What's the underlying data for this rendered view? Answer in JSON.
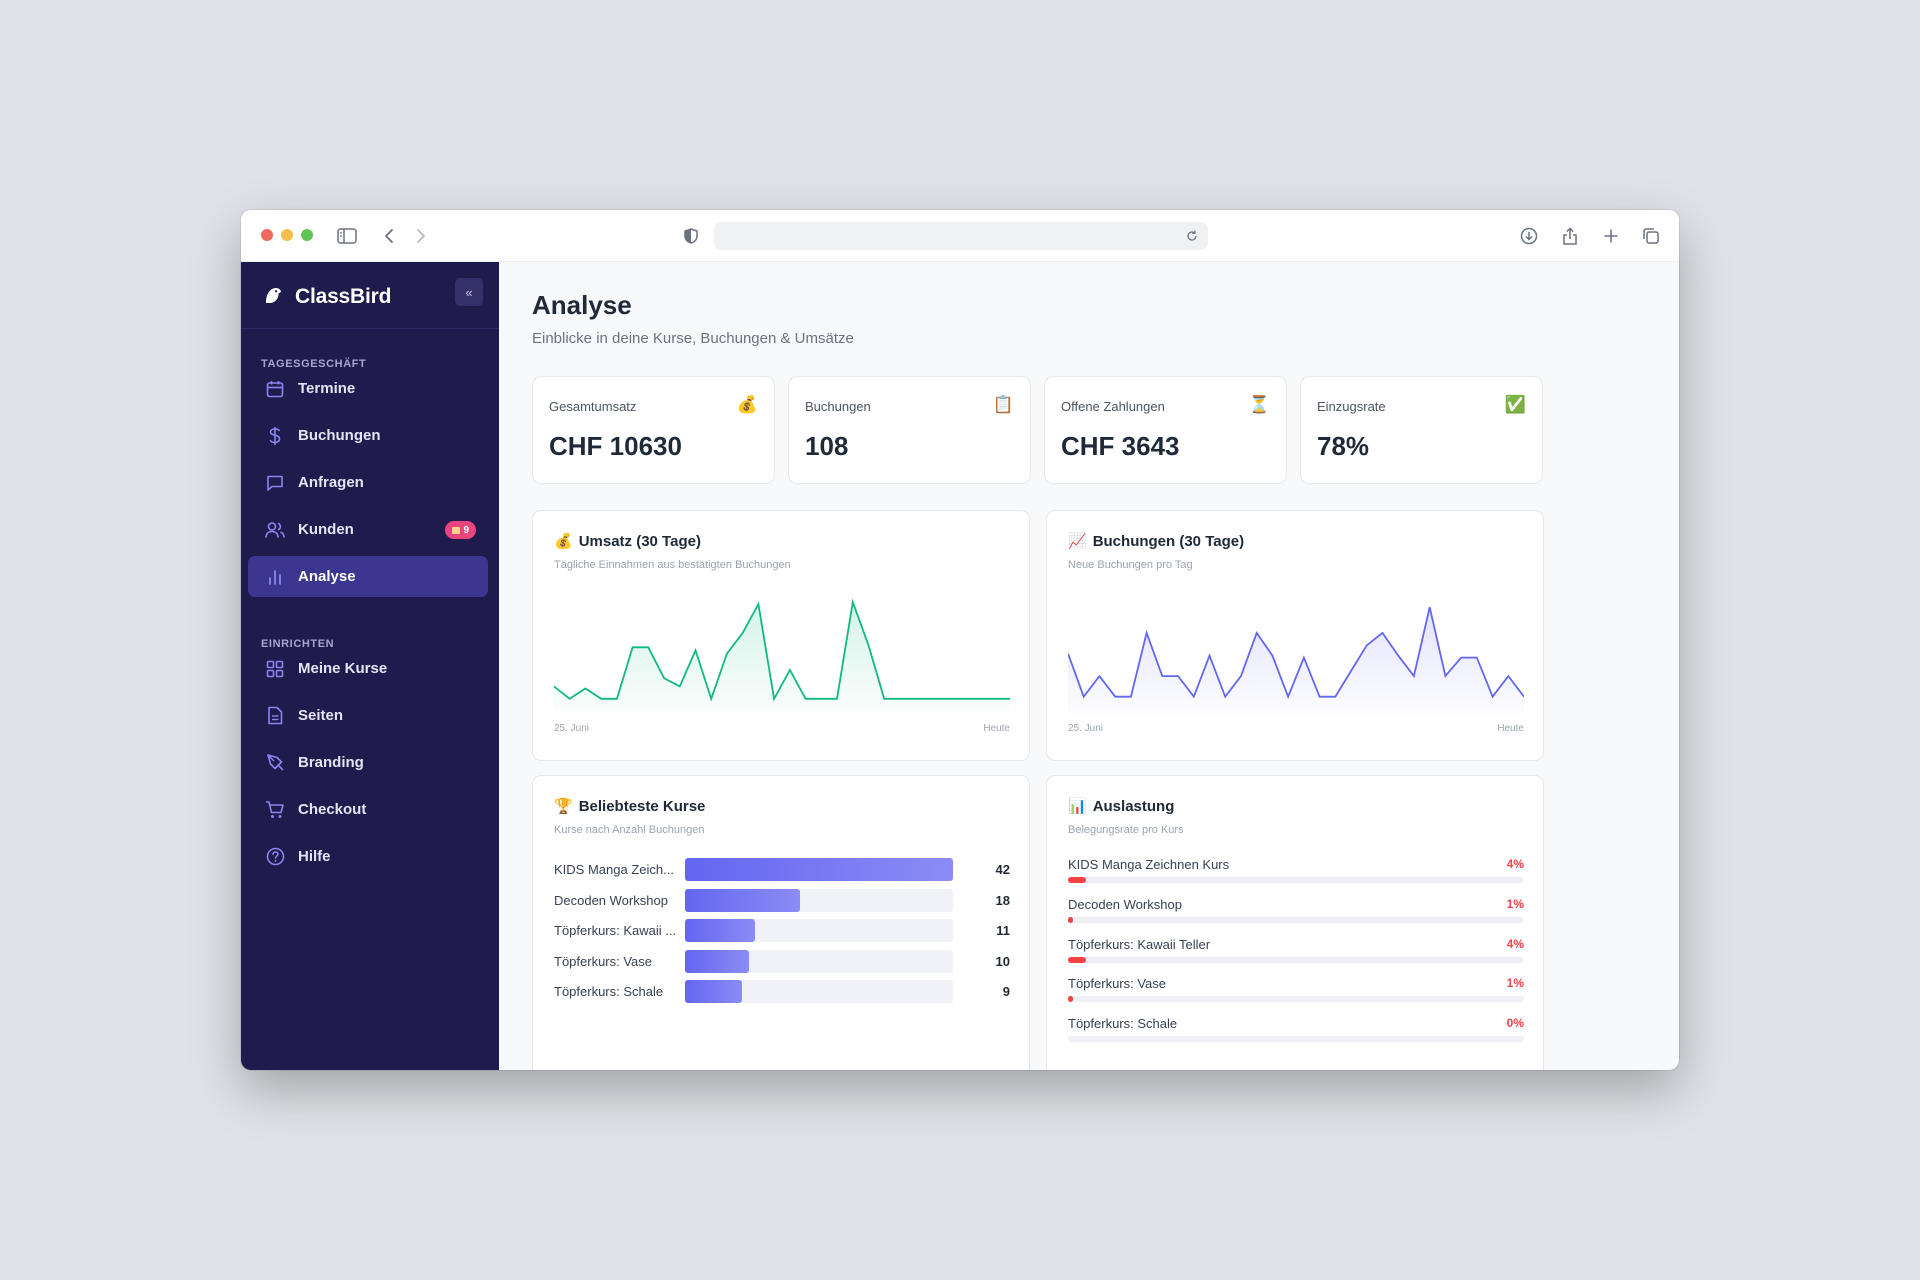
{
  "browser": {
    "url": ""
  },
  "sidebar": {
    "brand": "ClassBird",
    "collapse_label": "«",
    "sections": [
      {
        "label": "TAGESGESCHÄFT",
        "items": [
          {
            "label": "Termine",
            "icon": "calendar-icon"
          },
          {
            "label": "Buchungen",
            "icon": "dollar-icon"
          },
          {
            "label": "Anfragen",
            "icon": "chat-icon"
          },
          {
            "label": "Kunden",
            "icon": "users-icon",
            "badge": "9"
          },
          {
            "label": "Analyse",
            "icon": "bar-chart-icon",
            "active": true
          }
        ]
      },
      {
        "label": "EINRICHTEN",
        "items": [
          {
            "label": "Meine Kurse",
            "icon": "grid-icon"
          },
          {
            "label": "Seiten",
            "icon": "document-icon"
          },
          {
            "label": "Branding",
            "icon": "pen-icon"
          },
          {
            "label": "Checkout",
            "icon": "cart-icon"
          },
          {
            "label": "Hilfe",
            "icon": "help-icon"
          }
        ]
      }
    ]
  },
  "page": {
    "title": "Analyse",
    "subtitle": "Einblicke in deine Kurse, Buchungen & Umsätze"
  },
  "kpis": [
    {
      "label": "Gesamtumsatz",
      "value": "CHF 10630",
      "emoji": "💰"
    },
    {
      "label": "Buchungen",
      "value": "108",
      "emoji": "📋"
    },
    {
      "label": "Offene Zahlungen",
      "value": "CHF 3643",
      "emoji": "⏳"
    },
    {
      "label": "Einzugsrate",
      "value": "78%",
      "emoji": "✅"
    }
  ],
  "revenue_panel": {
    "title": "Umsatz (30 Tage)",
    "emoji": "💰",
    "subtitle": "Tägliche Einnahmen aus bestätigten Buchungen",
    "x_start": "25. Juni",
    "x_end": "Heute",
    "color": "#10b981"
  },
  "bookings_panel": {
    "title": "Buchungen (30 Tage)",
    "emoji": "📈",
    "subtitle": "Neue Buchungen pro Tag",
    "x_start": "25. Juni",
    "x_end": "Heute",
    "color": "#6366f1"
  },
  "popular_panel": {
    "title": "Beliebteste Kurse",
    "emoji": "🏆",
    "subtitle": "Kurse nach Anzahl Buchungen"
  },
  "utilization_panel": {
    "title": "Auslastung",
    "emoji": "📊",
    "subtitle": "Belegungsrate pro Kurs"
  },
  "chart_data": [
    {
      "type": "area",
      "title": "Umsatz (30 Tage)",
      "x_start": "25. Juni",
      "x_end": "Heute",
      "values": [
        20,
        8,
        18,
        8,
        8,
        58,
        58,
        28,
        20,
        55,
        8,
        52,
        72,
        100,
        8,
        36,
        8,
        8,
        8,
        102,
        60,
        8,
        8,
        8,
        8,
        8,
        8,
        8,
        8,
        8
      ]
    },
    {
      "type": "area",
      "title": "Buchungen (30 Tage)",
      "x_start": "25. Juni",
      "x_end": "Heute",
      "values": [
        52,
        10,
        30,
        10,
        10,
        72,
        30,
        30,
        10,
        50,
        10,
        30,
        72,
        50,
        10,
        48,
        10,
        10,
        35,
        60,
        72,
        50,
        30,
        97,
        30,
        48,
        48,
        10,
        30,
        10
      ]
    },
    {
      "type": "bar",
      "title": "Beliebteste Kurse",
      "categories": [
        "KIDS Manga Zeich...",
        "Decoden Workshop",
        "Töpferkurs: Kawaii ...",
        "Töpferkurs: Vase",
        "Töpferkurs: Schale"
      ],
      "values": [
        42,
        18,
        11,
        10,
        9
      ]
    },
    {
      "type": "bar",
      "title": "Auslastung",
      "categories": [
        "KIDS Manga Zeichnen Kurs",
        "Decoden Workshop",
        "Töpferkurs: Kawaii Teller",
        "Töpferkurs: Vase",
        "Töpferkurs: Schale"
      ],
      "values": [
        4,
        1,
        4,
        1,
        0
      ],
      "labels": [
        "4%",
        "1%",
        "4%",
        "1%",
        "0%"
      ],
      "unit": "%"
    }
  ]
}
